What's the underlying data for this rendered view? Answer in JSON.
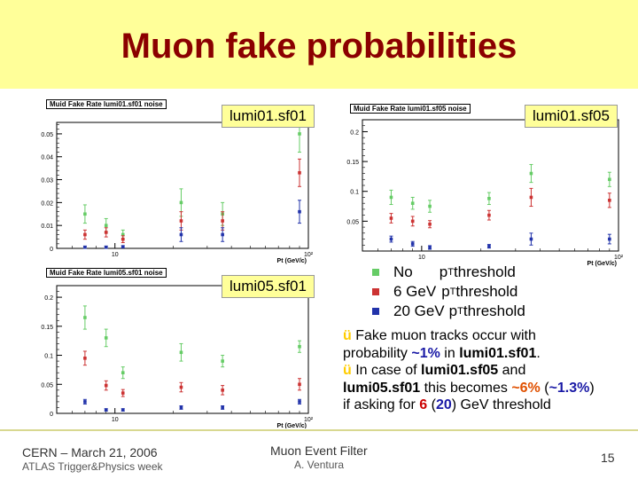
{
  "header": {
    "title": "Muon fake probabilities"
  },
  "chart_data": [
    {
      "type": "scatter",
      "title": "Muid Fake Rate lumi01.sf01 noise",
      "xlabel": "Pt (GeV/c)",
      "ylabel": "",
      "xscale": "log",
      "xlim": [
        5,
        100
      ],
      "ylim": [
        0,
        0.055
      ],
      "x_ticks": [
        "10",
        "10²"
      ],
      "y_ticks": [
        "0",
        "0.01",
        "0.02",
        "0.03",
        "0.04",
        "0.05"
      ],
      "series": [
        {
          "color": "#66cc66",
          "points": [
            {
              "x": 7,
              "y": 0.015,
              "err": 0.004
            },
            {
              "x": 9,
              "y": 0.01,
              "err": 0.003
            },
            {
              "x": 11,
              "y": 0.006,
              "err": 0.002
            },
            {
              "x": 22,
              "y": 0.02,
              "err": 0.006
            },
            {
              "x": 36,
              "y": 0.015,
              "err": 0.005
            },
            {
              "x": 90,
              "y": 0.05,
              "err": 0.008
            }
          ]
        },
        {
          "color": "#cc3333",
          "points": [
            {
              "x": 7,
              "y": 0.006,
              "err": 0.002
            },
            {
              "x": 9,
              "y": 0.007,
              "err": 0.002
            },
            {
              "x": 11,
              "y": 0.004,
              "err": 0.0015
            },
            {
              "x": 22,
              "y": 0.012,
              "err": 0.004
            },
            {
              "x": 36,
              "y": 0.012,
              "err": 0.004
            },
            {
              "x": 90,
              "y": 0.033,
              "err": 0.006
            }
          ]
        },
        {
          "color": "#2233aa",
          "points": [
            {
              "x": 7,
              "y": 0.0005,
              "err": 0.0005
            },
            {
              "x": 9,
              "y": 0.0005,
              "err": 0.0005
            },
            {
              "x": 11,
              "y": 0.0007,
              "err": 0.0005
            },
            {
              "x": 22,
              "y": 0.006,
              "err": 0.003
            },
            {
              "x": 36,
              "y": 0.006,
              "err": 0.003
            },
            {
              "x": 90,
              "y": 0.016,
              "err": 0.005
            }
          ]
        }
      ]
    },
    {
      "type": "scatter",
      "title": "Muid Fake Rate lumi01.sf05 noise",
      "xlabel": "Pt (GeV/c)",
      "ylabel": "",
      "xscale": "log",
      "xlim": [
        5,
        100
      ],
      "ylim": [
        0,
        0.22
      ],
      "x_ticks": [
        "10",
        "10²"
      ],
      "y_ticks": [
        "0.05",
        "0.1",
        "0.15",
        "0.2"
      ],
      "series": [
        {
          "color": "#66cc66",
          "points": [
            {
              "x": 7,
              "y": 0.09,
              "err": 0.012
            },
            {
              "x": 9,
              "y": 0.08,
              "err": 0.01
            },
            {
              "x": 11,
              "y": 0.075,
              "err": 0.01
            },
            {
              "x": 22,
              "y": 0.088,
              "err": 0.01
            },
            {
              "x": 36,
              "y": 0.13,
              "err": 0.015
            },
            {
              "x": 90,
              "y": 0.12,
              "err": 0.012
            }
          ]
        },
        {
          "color": "#cc3333",
          "points": [
            {
              "x": 7,
              "y": 0.055,
              "err": 0.008
            },
            {
              "x": 9,
              "y": 0.05,
              "err": 0.008
            },
            {
              "x": 11,
              "y": 0.045,
              "err": 0.006
            },
            {
              "x": 22,
              "y": 0.06,
              "err": 0.008
            },
            {
              "x": 36,
              "y": 0.09,
              "err": 0.015
            },
            {
              "x": 90,
              "y": 0.085,
              "err": 0.012
            }
          ]
        },
        {
          "color": "#2233aa",
          "points": [
            {
              "x": 7,
              "y": 0.02,
              "err": 0.005
            },
            {
              "x": 9,
              "y": 0.012,
              "err": 0.004
            },
            {
              "x": 11,
              "y": 0.006,
              "err": 0.003
            },
            {
              "x": 22,
              "y": 0.008,
              "err": 0.003
            },
            {
              "x": 36,
              "y": 0.02,
              "err": 0.01
            },
            {
              "x": 90,
              "y": 0.02,
              "err": 0.008
            }
          ]
        }
      ]
    },
    {
      "type": "scatter",
      "title": "Muid Fake Rate lumi05.sf01 noise",
      "xlabel": "Pt (GeV/c)",
      "ylabel": "",
      "xscale": "log",
      "xlim": [
        5,
        100
      ],
      "ylim": [
        0,
        0.22
      ],
      "x_ticks": [
        "10",
        "10²"
      ],
      "y_ticks": [
        "0",
        "0.05",
        "0.1",
        "0.15",
        "0.2"
      ],
      "series": [
        {
          "color": "#66cc66",
          "points": [
            {
              "x": 7,
              "y": 0.165,
              "err": 0.02
            },
            {
              "x": 9,
              "y": 0.13,
              "err": 0.015
            },
            {
              "x": 11,
              "y": 0.07,
              "err": 0.01
            },
            {
              "x": 22,
              "y": 0.105,
              "err": 0.015
            },
            {
              "x": 36,
              "y": 0.09,
              "err": 0.01
            },
            {
              "x": 90,
              "y": 0.115,
              "err": 0.01
            }
          ]
        },
        {
          "color": "#cc3333",
          "points": [
            {
              "x": 7,
              "y": 0.095,
              "err": 0.012
            },
            {
              "x": 9,
              "y": 0.048,
              "err": 0.008
            },
            {
              "x": 11,
              "y": 0.035,
              "err": 0.006
            },
            {
              "x": 22,
              "y": 0.045,
              "err": 0.008
            },
            {
              "x": 36,
              "y": 0.04,
              "err": 0.008
            },
            {
              "x": 90,
              "y": 0.05,
              "err": 0.01
            }
          ]
        },
        {
          "color": "#2233aa",
          "points": [
            {
              "x": 7,
              "y": 0.02,
              "err": 0.004
            },
            {
              "x": 9,
              "y": 0.006,
              "err": 0.002
            },
            {
              "x": 11,
              "y": 0.006,
              "err": 0.002
            },
            {
              "x": 22,
              "y": 0.01,
              "err": 0.003
            },
            {
              "x": 36,
              "y": 0.01,
              "err": 0.003
            },
            {
              "x": 90,
              "y": 0.02,
              "err": 0.004
            }
          ]
        }
      ]
    }
  ],
  "callouts": {
    "c1": "lumi01.sf01",
    "c2": "lumi01.sf05",
    "c3": "lumi05.sf01"
  },
  "legend": {
    "items": [
      {
        "color": "#66cc66",
        "pre": "No",
        "sub": "T",
        "post": " threshold",
        "p": "p"
      },
      {
        "color": "#cc3333",
        "pre": "6 GeV",
        "sub": "T",
        "post": " threshold",
        "p": "p"
      },
      {
        "color": "#2233aa",
        "pre": "20 GeV",
        "sub": "T",
        "post": " threshold",
        "p": "p"
      }
    ]
  },
  "notes": {
    "check": "ü",
    "n1_a": " Fake muon tracks occur with probability ",
    "n1_b": "~1%",
    "n1_c": " in ",
    "n1_d": "lumi01.sf01",
    "n1_e": ".",
    "n2_a": " In case of ",
    "n2_b": "lumi01.sf05",
    "n2_c": " and ",
    "n2_d": "lumi05.sf01",
    "n2_e": " this becomes ",
    "n2_f": "~6%",
    "n2_g": " (",
    "n2_h": "~1.3%",
    "n2_i": ") if asking for ",
    "n2_j": "6",
    "n2_k": " (",
    "n2_l": "20",
    "n2_m": ") GeV threshold"
  },
  "footer": {
    "left_top": "CERN – March 21, 2006",
    "left_bottom": "ATLAS Trigger&Physics week",
    "center_top": "Muon Event Filter",
    "center_bottom": "A. Ventura",
    "page": "15"
  }
}
